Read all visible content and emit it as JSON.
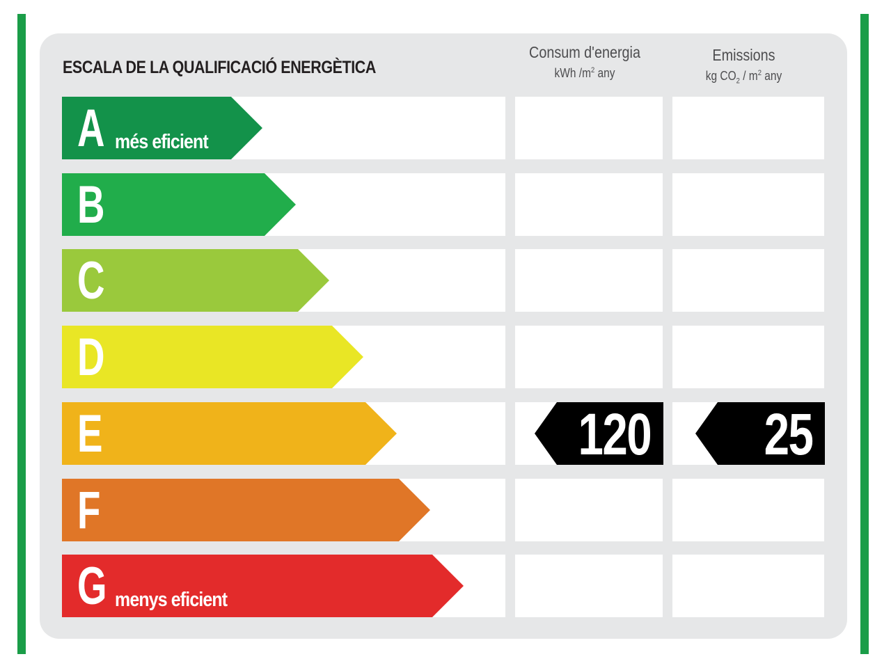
{
  "title": "ESCALA DE LA QUALIFICACIÓ ENERGÈTICA",
  "columns": {
    "energy": {
      "label": "Consum d'energia",
      "unit_prefix": "kWh /m",
      "unit_sup": "2",
      "unit_suffix": " any"
    },
    "emissions": {
      "label": "Emissions",
      "unit_prefix": "kg CO",
      "unit_sub": "2",
      "unit_mid": " / m",
      "unit_sup": "2",
      "unit_suffix": " any"
    }
  },
  "grades": [
    {
      "letter": "A",
      "sublabel": "més eficient",
      "color": "#13924a"
    },
    {
      "letter": "B",
      "sublabel": "",
      "color": "#21ad4b"
    },
    {
      "letter": "C",
      "sublabel": "",
      "color": "#9ac93c"
    },
    {
      "letter": "D",
      "sublabel": "",
      "color": "#e9e625"
    },
    {
      "letter": "E",
      "sublabel": "",
      "color": "#f0b31a"
    },
    {
      "letter": "F",
      "sublabel": "",
      "color": "#e07627"
    },
    {
      "letter": "G",
      "sublabel": "menys eficient",
      "color": "#e32b2b"
    }
  ],
  "rating": {
    "grade": "E",
    "energy_value": "120",
    "emissions_value": "25"
  },
  "colors": {
    "frame_green": "#1a9d48",
    "panel_grey": "#e6e7e8",
    "tag_black": "#000000"
  }
}
